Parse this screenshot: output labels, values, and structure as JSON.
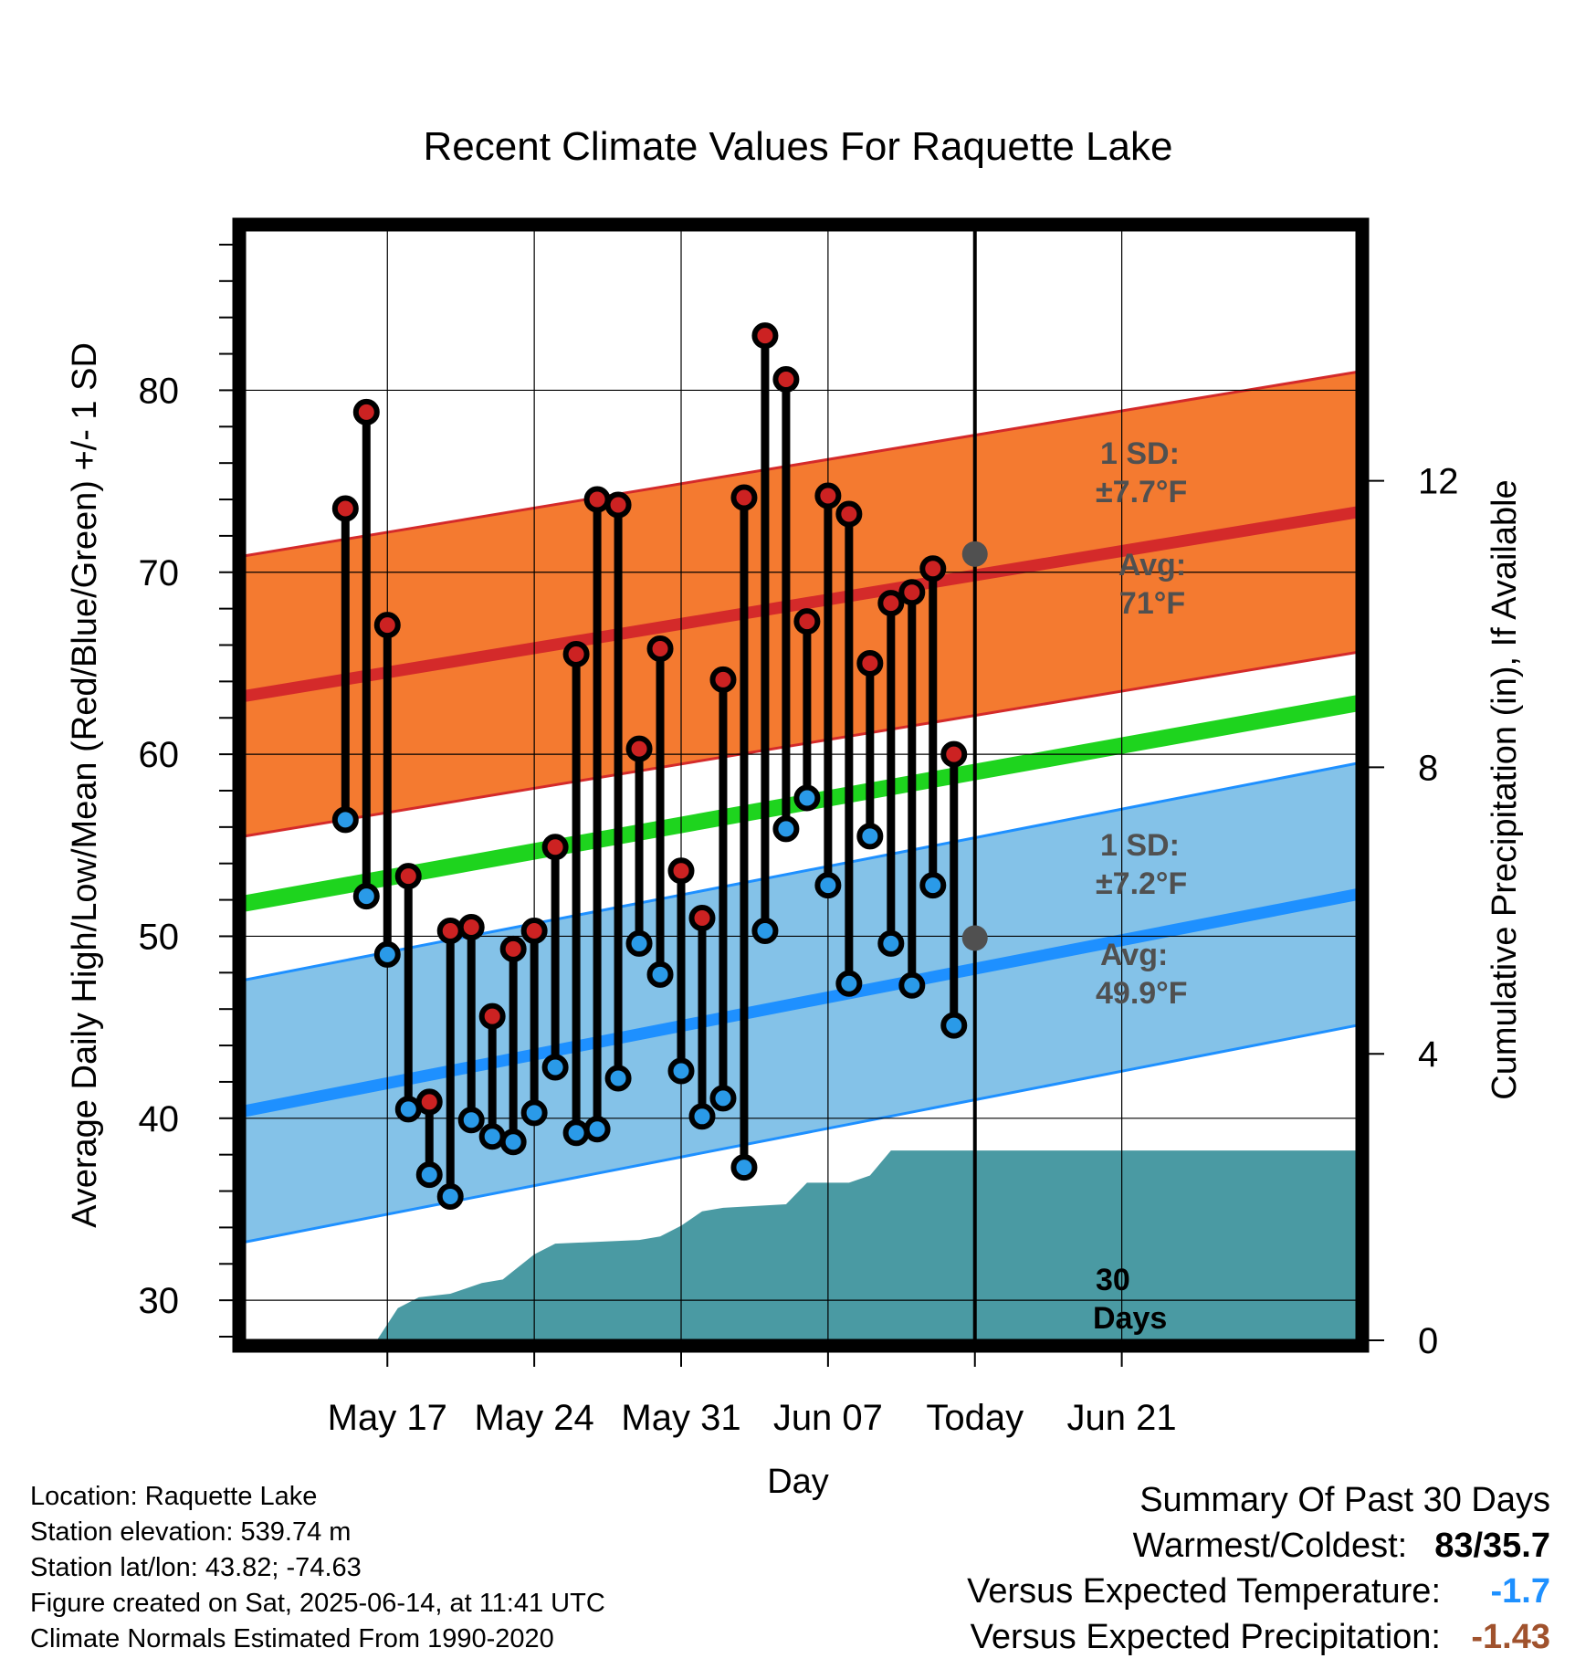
{
  "chart_data": {
    "type": "line",
    "title": "Recent Climate Values For Raquette Lake",
    "xlabel": "Day",
    "ylabel": "Average Daily High/Low/Mean (Red/Blue/Green) +/- 1 SD",
    "y2label": "Cumulative Precipitation (in), If Available",
    "ylim": [
      27.8,
      88.8
    ],
    "y2lim": [
      0,
      15.5
    ],
    "xlim": [
      -6.8,
      46.2
    ],
    "yticks": [
      "30",
      "40",
      "50",
      "60",
      "70",
      "80"
    ],
    "y2ticks": [
      "0",
      "4",
      "8",
      "12"
    ],
    "xtick_labels": [
      {
        "day": 0,
        "label": "May 17"
      },
      {
        "day": 7,
        "label": "May 24"
      },
      {
        "day": 14,
        "label": "May 31"
      },
      {
        "day": 21,
        "label": "Jun 07"
      },
      {
        "day": 28,
        "label": "Today"
      },
      {
        "day": 35,
        "label": "Jun 21"
      }
    ],
    "start_label": "May 17",
    "today_day": 28,
    "grid": true,
    "normals": {
      "high_avg": [
        63.2,
        73.3
      ],
      "high_sd": 7.7,
      "low_avg": [
        40.4,
        52.3
      ],
      "low_sd": 7.2,
      "mean_avg": [
        51.8,
        62.8
      ]
    },
    "annotations": {
      "high_sd_line1": "1 SD:",
      "high_sd_line2": "±7.7°F",
      "high_avg_line1": "Avg:",
      "high_avg_line2": "71°F",
      "low_sd_line1": "1 SD:",
      "low_sd_line2": "±7.2°F",
      "low_avg_line1": "Avg:",
      "low_avg_line2": "49.9°F",
      "days_line1": "30",
      "days_line2": "Days"
    },
    "today_markers": {
      "high": 71,
      "low": 49.9
    },
    "days": [
      {
        "x": -2,
        "high": 73.5,
        "low": 56.4
      },
      {
        "x": -1,
        "high": 78.8,
        "low": 52.2
      },
      {
        "x": 0,
        "high": 67.1,
        "low": 49.0
      },
      {
        "x": 1,
        "high": 53.3,
        "low": 40.5
      },
      {
        "x": 2,
        "high": 40.9,
        "low": 36.9
      },
      {
        "x": 3,
        "high": 50.3,
        "low": 35.7
      },
      {
        "x": 4,
        "high": 50.5,
        "low": 39.9
      },
      {
        "x": 5,
        "high": 45.6,
        "low": 39.0
      },
      {
        "x": 6,
        "high": 49.3,
        "low": 38.7
      },
      {
        "x": 7,
        "high": 50.3,
        "low": 40.3
      },
      {
        "x": 8,
        "high": 54.9,
        "low": 42.8
      },
      {
        "x": 9,
        "high": 65.5,
        "low": 39.2
      },
      {
        "x": 10,
        "high": 74.0,
        "low": 39.4
      },
      {
        "x": 11,
        "high": 73.7,
        "low": 42.2
      },
      {
        "x": 12,
        "high": 60.3,
        "low": 49.6
      },
      {
        "x": 13,
        "high": 65.8,
        "low": 47.9
      },
      {
        "x": 14,
        "high": 53.6,
        "low": 42.6
      },
      {
        "x": 15,
        "high": 51.0,
        "low": 40.1
      },
      {
        "x": 16,
        "high": 64.1,
        "low": 41.1
      },
      {
        "x": 17,
        "high": 74.1,
        "low": 37.3
      },
      {
        "x": 18,
        "high": 83.0,
        "low": 50.3
      },
      {
        "x": 19,
        "high": 80.6,
        "low": 55.9
      },
      {
        "x": 20,
        "high": 67.3,
        "low": 57.6
      },
      {
        "x": 21,
        "high": 74.2,
        "low": 52.8
      },
      {
        "x": 22,
        "high": 73.2,
        "low": 47.4
      },
      {
        "x": 23,
        "high": 65.0,
        "low": 55.5
      },
      {
        "x": 24,
        "high": 68.3,
        "low": 49.6
      },
      {
        "x": 25,
        "high": 68.9,
        "low": 47.3
      },
      {
        "x": 26,
        "high": 70.2,
        "low": 52.8
      },
      {
        "x": 27,
        "high": 60.0,
        "low": 45.1
      }
    ],
    "precip": [
      [
        -0.5,
        0
      ],
      [
        0.5,
        0.45
      ],
      [
        1.5,
        0.6
      ],
      [
        3,
        0.65
      ],
      [
        4.5,
        0.8
      ],
      [
        5.5,
        0.85
      ],
      [
        7,
        1.2
      ],
      [
        8,
        1.35
      ],
      [
        12,
        1.4
      ],
      [
        13,
        1.45
      ],
      [
        14,
        1.6
      ],
      [
        15,
        1.8
      ],
      [
        16,
        1.85
      ],
      [
        19,
        1.9
      ],
      [
        20,
        2.2
      ],
      [
        22,
        2.2
      ],
      [
        23,
        2.3
      ],
      [
        24,
        2.65
      ],
      [
        46.2,
        2.65
      ]
    ]
  },
  "info": {
    "location": "Location: Raquette Lake",
    "elevation": "Station elevation: 539.74 m",
    "latlon": "Station lat/lon: 43.82; -74.63",
    "created": "Figure created on Sat, 2025-06-14, at 11:41 UTC",
    "normals": "Climate Normals Estimated From 1990-2020"
  },
  "summary": {
    "title": "Summary Of Past 30 Days",
    "warmest_label": "Warmest/Coldest:",
    "warmest_value": "83/35.7",
    "temp_label": "Versus Expected Temperature:",
    "temp_value": "-1.7",
    "precip_label": "Versus Expected Precipitation:",
    "precip_value": "-1.43"
  },
  "colors": {
    "high_band": "#f47a30",
    "high_line": "#d42a2a",
    "low_band": "#84c2e8",
    "low_line": "#1e90ff",
    "mean_line": "#1ed41e",
    "precip": "#4a9aa3",
    "high_dot": "#cc2222",
    "low_dot": "#2a9ae8",
    "annot": "#505050",
    "temp_value": "#1e90ff",
    "precip_value": "#a0522d"
  }
}
